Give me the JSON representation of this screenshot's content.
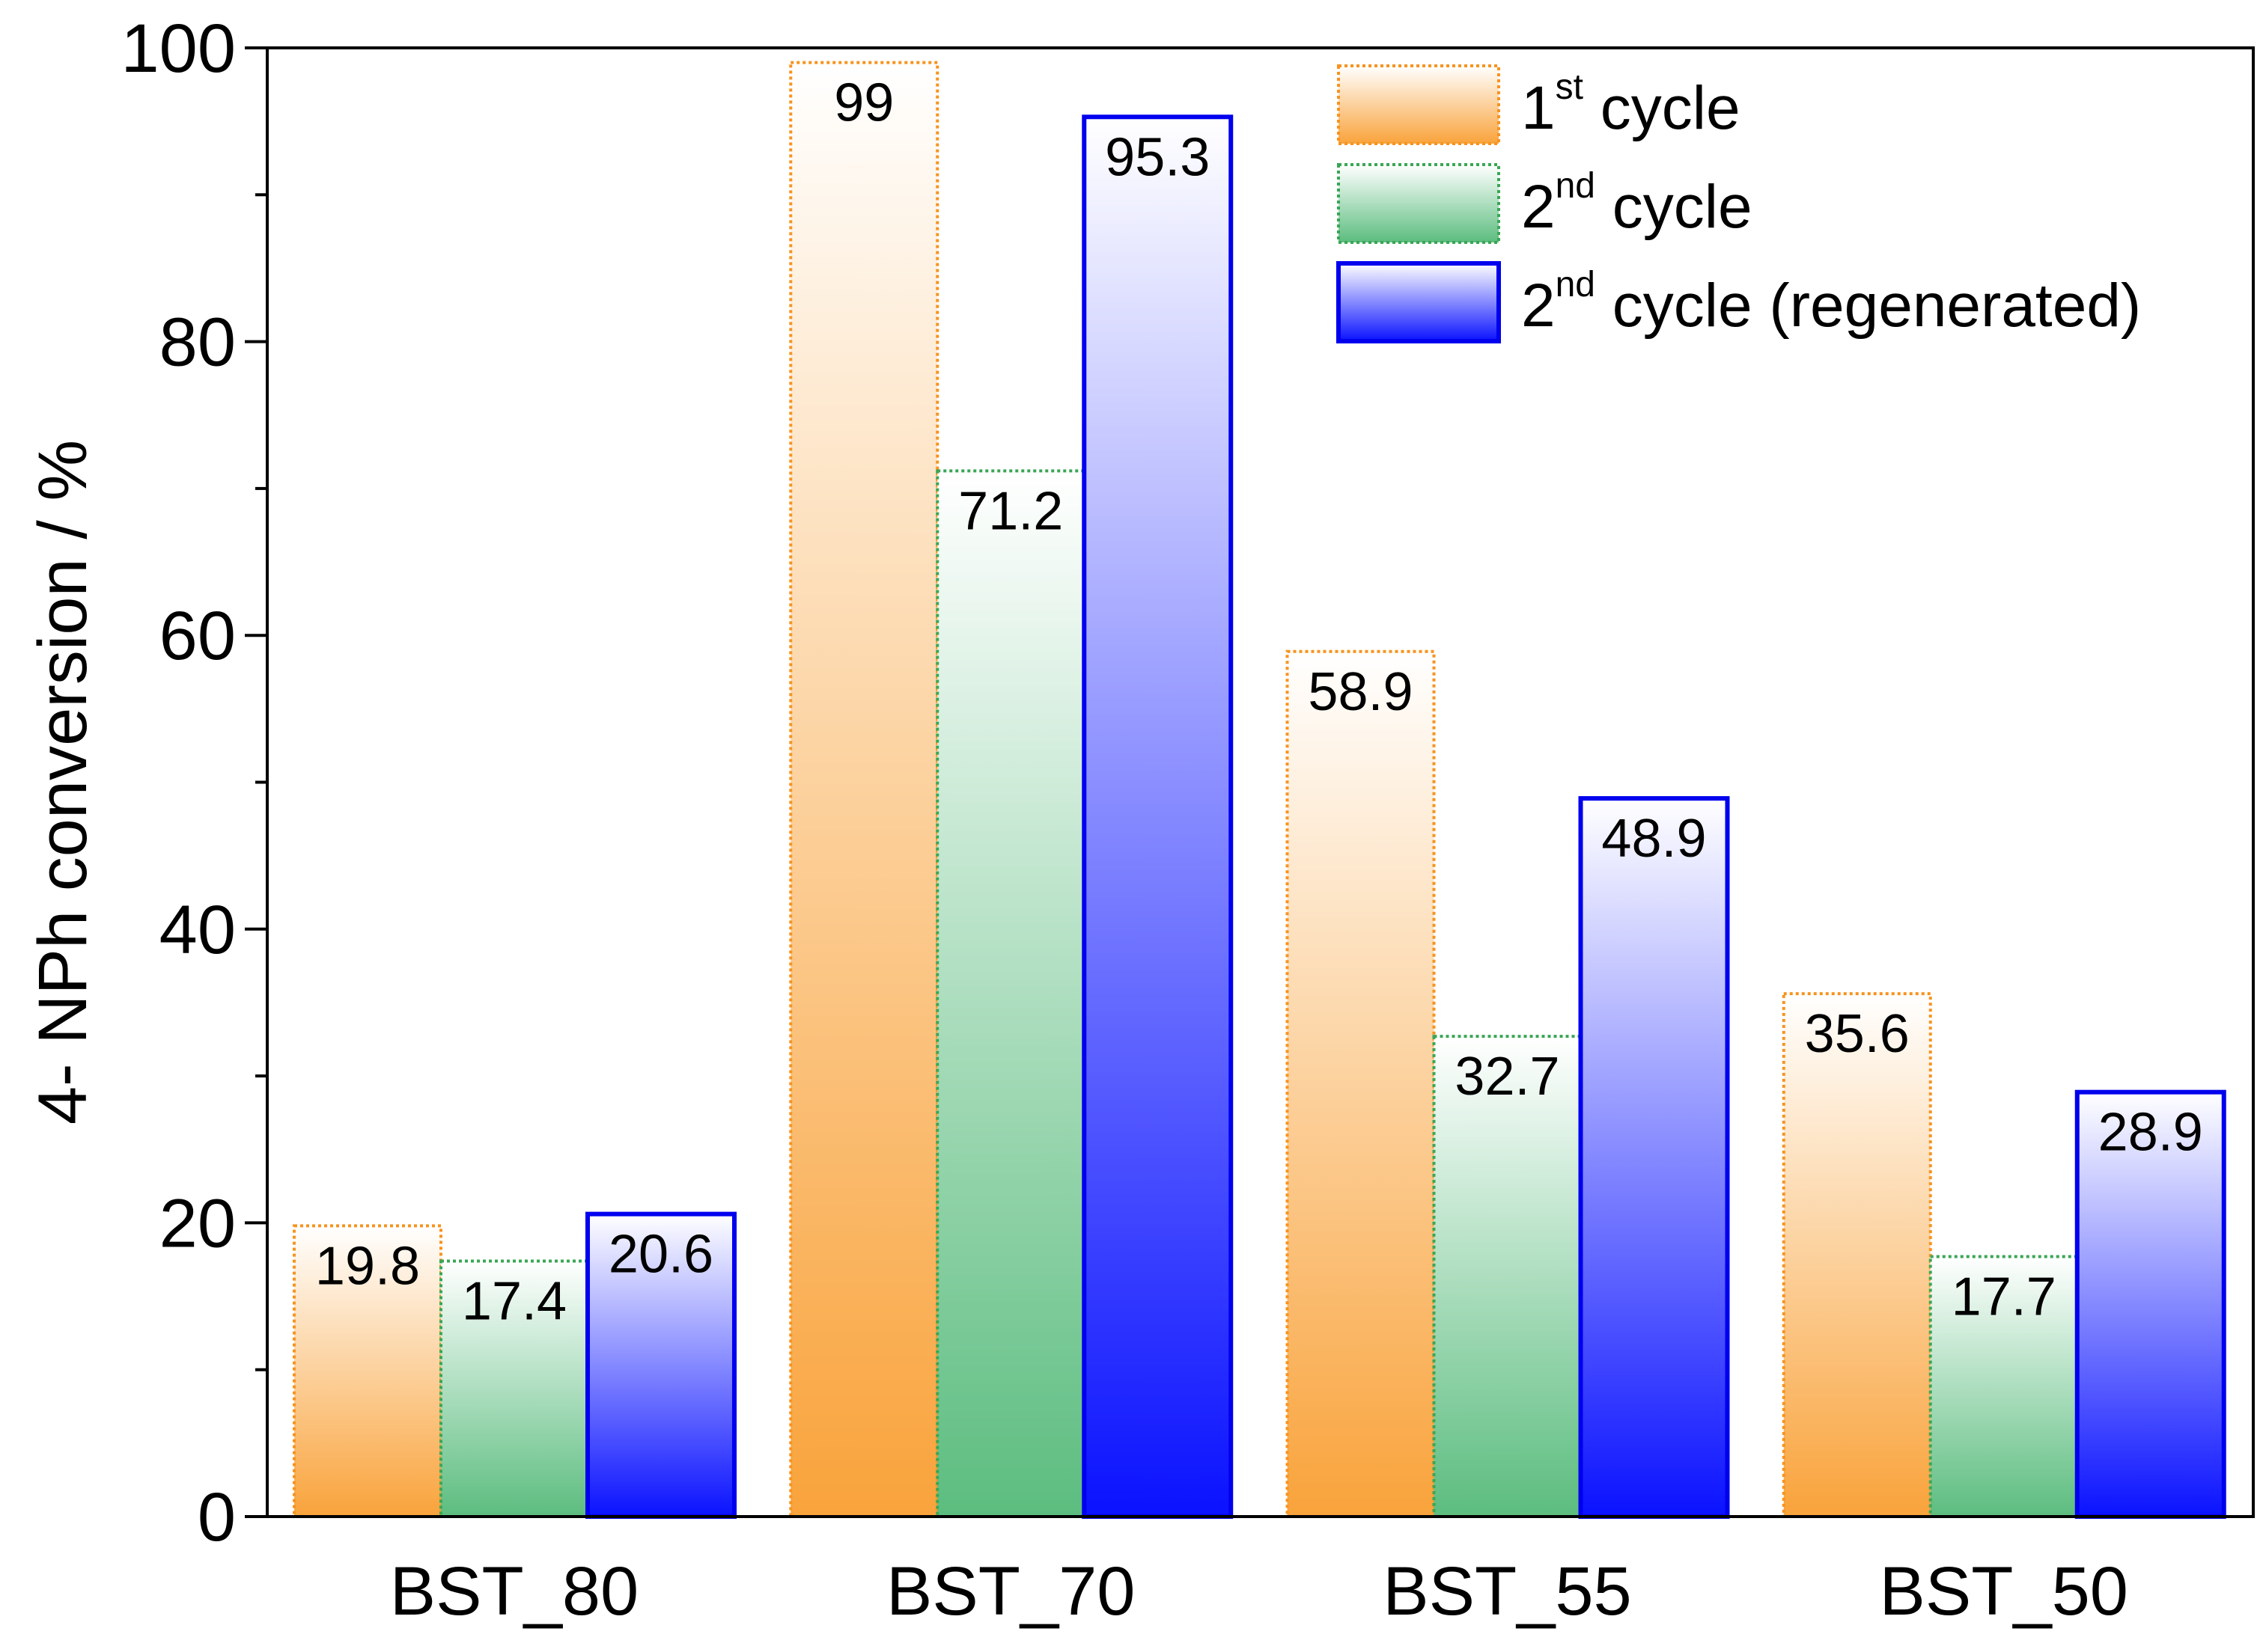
{
  "chart_data": {
    "type": "bar",
    "title": "",
    "xlabel": "",
    "ylabel": "4- NPh conversion / %",
    "ylim": [
      0,
      100
    ],
    "yticks": [
      0,
      20,
      40,
      60,
      80,
      100
    ],
    "yminor_step": 10,
    "grid": false,
    "legend_position": "top-right",
    "categories": [
      "BST_80",
      "BST_70",
      "BST_55",
      "BST_50"
    ],
    "series": [
      {
        "name": "1st cycle",
        "legend_base": "1",
        "legend_sup": "st",
        "legend_rest": " cycle",
        "values": [
          19.8,
          99,
          58.9,
          35.6
        ],
        "labels": [
          "19.8",
          "99",
          "58.9",
          "35.6"
        ],
        "stroke": "#f7931e",
        "fill_top": "#ffffff",
        "fill_bottom": "#f9a33b",
        "border_style": "dotted"
      },
      {
        "name": "2nd cycle",
        "legend_base": "2",
        "legend_sup": "nd",
        "legend_rest": " cycle",
        "values": [
          17.4,
          71.2,
          32.7,
          17.7
        ],
        "labels": [
          "17.4",
          "71.2",
          "32.7",
          "17.7"
        ],
        "stroke": "#3aa655",
        "fill_top": "#ffffff",
        "fill_bottom": "#5cbd7f",
        "border_style": "dotted"
      },
      {
        "name": "2nd cycle (regenerated)",
        "legend_base": "2",
        "legend_sup": "nd",
        "legend_rest": " cycle (regenerated)",
        "values": [
          20.6,
          95.3,
          48.9,
          28.9
        ],
        "labels": [
          "20.6",
          "95.3",
          "48.9",
          "28.9"
        ],
        "stroke": "#0000ee",
        "fill_top": "#ffffff",
        "fill_bottom": "#0a12ff",
        "border_style": "solid"
      }
    ]
  }
}
